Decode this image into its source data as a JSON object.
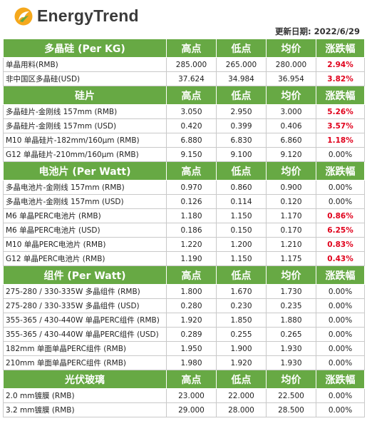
{
  "header": {
    "brand": "EnergyTrend",
    "update_label": "更新日期:",
    "update_date": "2022/6/29"
  },
  "colors": {
    "section_bg": "#67a944",
    "up": "#e0001b",
    "logo_orange": "#f5a81c",
    "logo_green": "#67a944"
  },
  "column_headers": [
    "高点",
    "低点",
    "均价",
    "涨跌幅"
  ],
  "sections": [
    {
      "title": "多晶硅 (Per KG)",
      "rows": [
        {
          "name": "单晶用料(RMB)",
          "high": "285.000",
          "low": "265.000",
          "avg": "280.000",
          "change": "2.94%",
          "up": true
        },
        {
          "name": "非中国区多晶硅(USD)",
          "high": "37.624",
          "low": "34.984",
          "avg": "36.954",
          "change": "3.82%",
          "up": true
        }
      ]
    },
    {
      "title": "硅片",
      "rows": [
        {
          "name": "多晶硅片-金刚线 157mm (RMB)",
          "high": "3.050",
          "low": "2.950",
          "avg": "3.000",
          "change": "5.26%",
          "up": true
        },
        {
          "name": "多晶硅片-金刚线 157mm (USD)",
          "high": "0.420",
          "low": "0.399",
          "avg": "0.406",
          "change": "3.57%",
          "up": true
        },
        {
          "name": "M10 单晶硅片-182mm/160μm (RMB)",
          "high": "6.880",
          "low": "6.830",
          "avg": "6.860",
          "change": "1.18%",
          "up": true
        },
        {
          "name": "G12 单晶硅片-210mm/160μm (RMB)",
          "high": "9.150",
          "low": "9.100",
          "avg": "9.120",
          "change": "0.00%",
          "up": false
        }
      ]
    },
    {
      "title": "电池片 (Per Watt)",
      "rows": [
        {
          "name": "多晶电池片-金刚线 157mm (RMB)",
          "high": "0.970",
          "low": "0.860",
          "avg": "0.900",
          "change": "0.00%",
          "up": false
        },
        {
          "name": "多晶电池片-金刚线 157mm (USD)",
          "high": "0.126",
          "low": "0.114",
          "avg": "0.120",
          "change": "0.00%",
          "up": false
        },
        {
          "name": "M6 单晶PERC电池片 (RMB)",
          "high": "1.180",
          "low": "1.150",
          "avg": "1.170",
          "change": "0.86%",
          "up": true
        },
        {
          "name": "M6 单晶PERC电池片 (USD)",
          "high": "0.186",
          "low": "0.150",
          "avg": "0.170",
          "change": "6.25%",
          "up": true
        },
        {
          "name": "M10 单晶PERC电池片 (RMB)",
          "high": "1.220",
          "low": "1.200",
          "avg": "1.210",
          "change": "0.83%",
          "up": true
        },
        {
          "name": "G12 单晶PERC电池片 (RMB)",
          "high": "1.190",
          "low": "1.150",
          "avg": "1.175",
          "change": "0.43%",
          "up": true
        }
      ]
    },
    {
      "title": "组件 (Per Watt)",
      "rows": [
        {
          "name": "275-280 / 330-335W 多晶组件 (RMB)",
          "high": "1.800",
          "low": "1.670",
          "avg": "1.730",
          "change": "0.00%",
          "up": false
        },
        {
          "name": "275-280 / 330-335W 多晶组件 (USD)",
          "high": "0.280",
          "low": "0.230",
          "avg": "0.235",
          "change": "0.00%",
          "up": false
        },
        {
          "name": "355-365 / 430-440W 单晶PERC组件 (RMB)",
          "high": "1.920",
          "low": "1.850",
          "avg": "1.880",
          "change": "0.00%",
          "up": false
        },
        {
          "name": "355-365 / 430-440W 单晶PERC组件 (USD)",
          "high": "0.289",
          "low": "0.255",
          "avg": "0.265",
          "change": "0.00%",
          "up": false
        },
        {
          "name": "182mm 单面单晶PERC组件 (RMB)",
          "high": "1.950",
          "low": "1.900",
          "avg": "1.930",
          "change": "0.00%",
          "up": false
        },
        {
          "name": "210mm 单面单晶PERC组件 (RMB)",
          "high": "1.980",
          "low": "1.920",
          "avg": "1.930",
          "change": "0.00%",
          "up": false
        }
      ]
    },
    {
      "title": "光伏玻璃",
      "rows": [
        {
          "name": "2.0 mm镀膜 (RMB)",
          "high": "23.000",
          "low": "22.000",
          "avg": "22.500",
          "change": "0.00%",
          "up": false
        },
        {
          "name": "3.2 mm镀膜 (RMB)",
          "high": "29.000",
          "low": "28.000",
          "avg": "28.500",
          "change": "0.00%",
          "up": false
        }
      ]
    }
  ]
}
